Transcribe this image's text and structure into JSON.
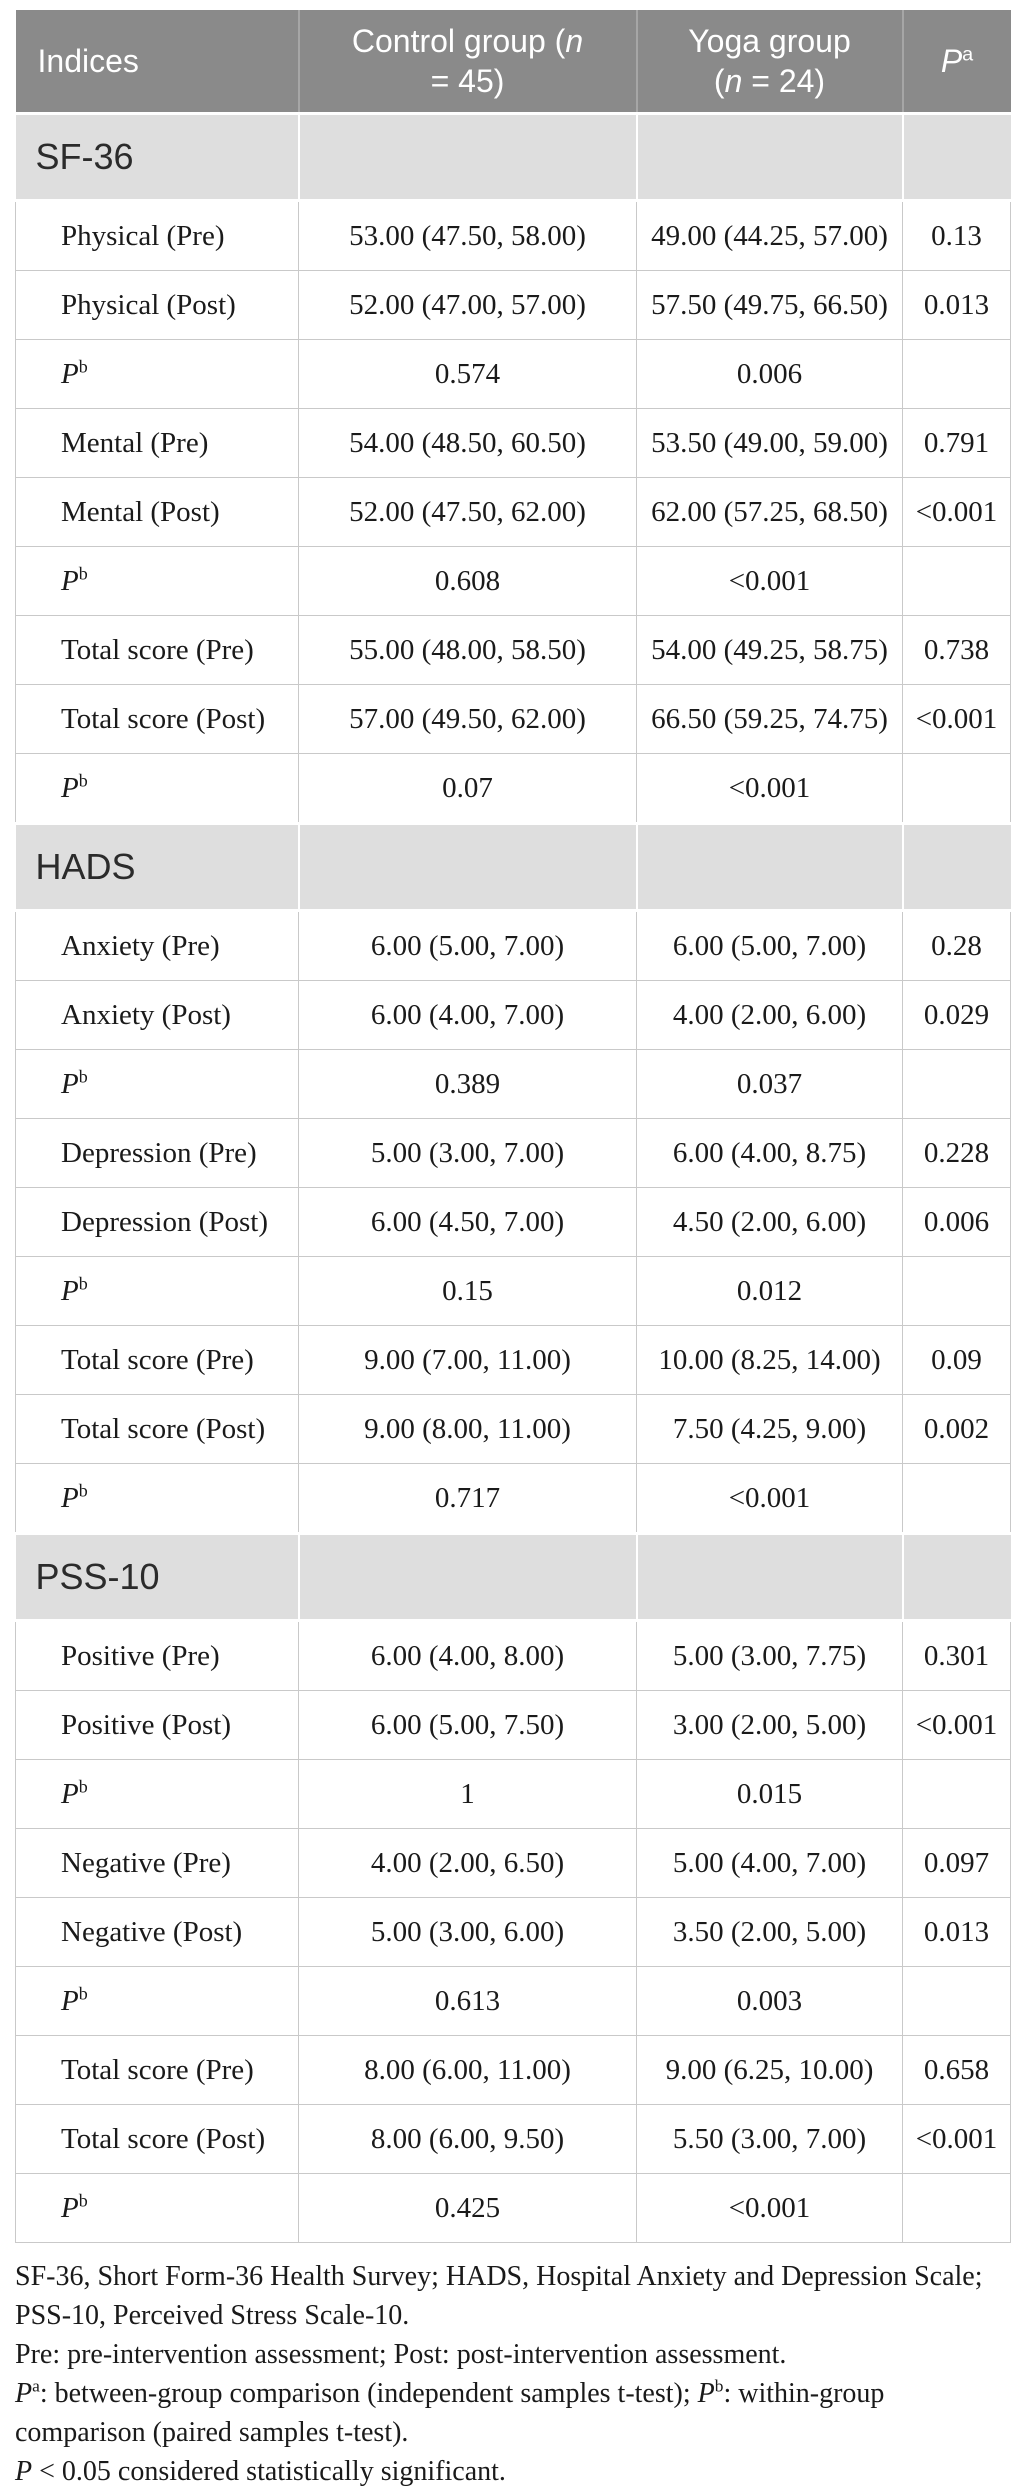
{
  "colors": {
    "header_bg": "#8a8a8a",
    "header_text": "#ffffff",
    "header_divider": "#a6a6a6",
    "section_bg": "#dedede",
    "cell_border": "#c9c9c9",
    "body_text": "#1a1a1a"
  },
  "table": {
    "header": {
      "indices": "Indices",
      "control": {
        "line1_pre": "Control group (",
        "line1_n": "n",
        "line2": "= 45)"
      },
      "yoga": {
        "line1": "Yoga group",
        "line2_pre": "(",
        "line2_n": "n",
        "line2_post": " = 24)"
      },
      "p": {
        "base": "P",
        "sup": "a"
      }
    },
    "sections": [
      {
        "title": "SF-36",
        "rows": [
          {
            "type": "data",
            "label": "Physical (Pre)",
            "control": "53.00 (47.50, 58.00)",
            "yoga": "49.00 (44.25, 57.00)",
            "p": "0.13"
          },
          {
            "type": "data",
            "label": "Physical (Post)",
            "control": "52.00 (47.00, 57.00)",
            "yoga": "57.50 (49.75, 66.50)",
            "p": "0.013"
          },
          {
            "type": "p",
            "label_base": "P",
            "label_sup": "b",
            "control": "0.574",
            "yoga": "0.006",
            "p": ""
          },
          {
            "type": "data",
            "label": "Mental (Pre)",
            "control": "54.00 (48.50, 60.50)",
            "yoga": "53.50 (49.00, 59.00)",
            "p": "0.791"
          },
          {
            "type": "data",
            "label": "Mental (Post)",
            "control": "52.00 (47.50, 62.00)",
            "yoga": "62.00 (57.25, 68.50)",
            "p": "<0.001"
          },
          {
            "type": "p",
            "label_base": "P",
            "label_sup": "b",
            "control": "0.608",
            "yoga": "<0.001",
            "p": ""
          },
          {
            "type": "data",
            "label": "Total score (Pre)",
            "control": "55.00 (48.00, 58.50)",
            "yoga": "54.00 (49.25, 58.75)",
            "p": "0.738"
          },
          {
            "type": "data",
            "label": "Total score (Post)",
            "control": "57.00 (49.50, 62.00)",
            "yoga": "66.50 (59.25, 74.75)",
            "p": "<0.001"
          },
          {
            "type": "p",
            "label_base": "P",
            "label_sup": "b",
            "control": "0.07",
            "yoga": "<0.001",
            "p": ""
          }
        ]
      },
      {
        "title": "HADS",
        "rows": [
          {
            "type": "data",
            "label": "Anxiety (Pre)",
            "control": "6.00 (5.00, 7.00)",
            "yoga": "6.00 (5.00, 7.00)",
            "p": "0.28"
          },
          {
            "type": "data",
            "label": "Anxiety (Post)",
            "control": "6.00 (4.00, 7.00)",
            "yoga": "4.00 (2.00, 6.00)",
            "p": "0.029"
          },
          {
            "type": "p",
            "label_base": "P",
            "label_sup": "b",
            "control": "0.389",
            "yoga": "0.037",
            "p": ""
          },
          {
            "type": "data",
            "label": "Depression (Pre)",
            "control": "5.00 (3.00, 7.00)",
            "yoga": "6.00 (4.00, 8.75)",
            "p": "0.228"
          },
          {
            "type": "data",
            "label": "Depression (Post)",
            "control": "6.00 (4.50, 7.00)",
            "yoga": "4.50 (2.00, 6.00)",
            "p": "0.006"
          },
          {
            "type": "p",
            "label_base": "P",
            "label_sup": "b",
            "control": "0.15",
            "yoga": "0.012",
            "p": ""
          },
          {
            "type": "data",
            "label": "Total score (Pre)",
            "control": "9.00 (7.00, 11.00)",
            "yoga": "10.00 (8.25, 14.00)",
            "p": "0.09"
          },
          {
            "type": "data",
            "label": "Total score (Post)",
            "control": "9.00 (8.00, 11.00)",
            "yoga": "7.50 (4.25, 9.00)",
            "p": "0.002"
          },
          {
            "type": "p",
            "label_base": "P",
            "label_sup": "b",
            "control": "0.717",
            "yoga": "<0.001",
            "p": ""
          }
        ]
      },
      {
        "title": "PSS-10",
        "rows": [
          {
            "type": "data",
            "label": "Positive (Pre)",
            "control": "6.00 (4.00, 8.00)",
            "yoga": "5.00 (3.00, 7.75)",
            "p": "0.301"
          },
          {
            "type": "data",
            "label": "Positive (Post)",
            "control": "6.00 (5.00, 7.50)",
            "yoga": "3.00 (2.00, 5.00)",
            "p": "<0.001"
          },
          {
            "type": "p",
            "label_base": "P",
            "label_sup": "b",
            "control": "1",
            "yoga": "0.015",
            "p": ""
          },
          {
            "type": "data",
            "label": "Negative (Pre)",
            "control": "4.00 (2.00, 6.50)",
            "yoga": "5.00 (4.00, 7.00)",
            "p": "0.097"
          },
          {
            "type": "data",
            "label": "Negative (Post)",
            "control": "5.00 (3.00, 6.00)",
            "yoga": "3.50 (2.00, 5.00)",
            "p": "0.013"
          },
          {
            "type": "p",
            "label_base": "P",
            "label_sup": "b",
            "control": "0.613",
            "yoga": "0.003",
            "p": ""
          },
          {
            "type": "data",
            "label": "Total score (Pre)",
            "control": "8.00 (6.00, 11.00)",
            "yoga": "9.00 (6.25, 10.00)",
            "p": "0.658"
          },
          {
            "type": "data",
            "label": "Total score (Post)",
            "control": "8.00 (6.00, 9.50)",
            "yoga": "5.50 (3.00, 7.00)",
            "p": "<0.001"
          },
          {
            "type": "p",
            "label_base": "P",
            "label_sup": "b",
            "control": "0.425",
            "yoga": "<0.001",
            "p": ""
          }
        ]
      }
    ]
  },
  "footnotes": [
    [
      {
        "text": "SF-36, Short Form-36 Health Survey; HADS, Hospital Anxiety and Depression Scale; PSS-10, Perceived Stress Scale-10."
      }
    ],
    [
      {
        "text": "Pre: pre-intervention assessment; Post: post-intervention assessment."
      }
    ],
    [
      {
        "italic": "P"
      },
      {
        "sup": "a"
      },
      {
        "text": ": between-group comparison (independent samples t-test); "
      },
      {
        "italic": "P"
      },
      {
        "sup": "b"
      },
      {
        "text": ": within-group comparison (paired samples t-test)."
      }
    ],
    [
      {
        "italic": "P"
      },
      {
        "text": " < 0.05 considered statistically significant."
      }
    ]
  ]
}
